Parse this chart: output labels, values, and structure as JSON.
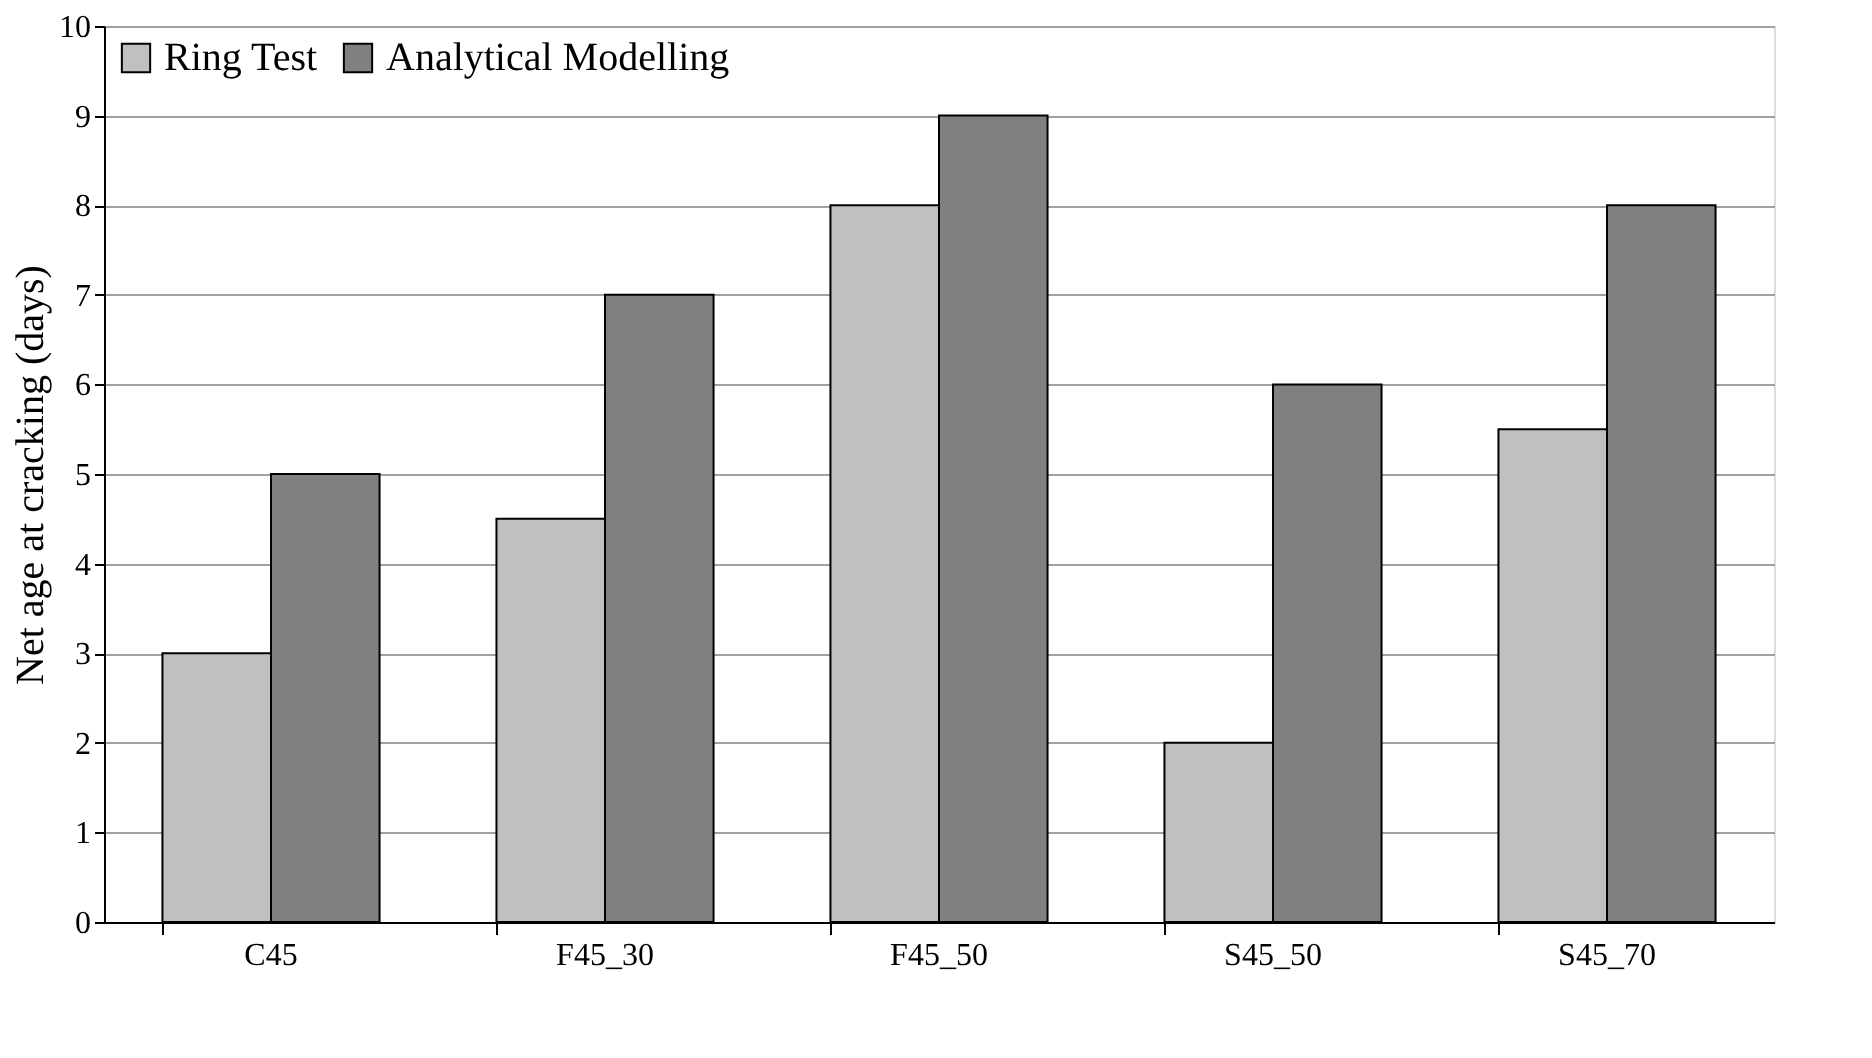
{
  "chart_data": {
    "type": "bar",
    "ylabel": "Net age at cracking (days)",
    "categories": [
      "C45",
      "F45_30",
      "F45_50",
      "S45_50",
      "S45_70"
    ],
    "series": [
      {
        "name": "Ring Test",
        "color": "#c0c0c0",
        "values": [
          3,
          4.5,
          8,
          2,
          5.5
        ]
      },
      {
        "name": "Analytical Modelling",
        "color": "#808080",
        "values": [
          5,
          7,
          9,
          6,
          8
        ]
      }
    ],
    "ylim": [
      0,
      10
    ],
    "yticks": [
      0,
      1,
      2,
      3,
      4,
      5,
      6,
      7,
      8,
      9,
      10
    ],
    "grid": "y",
    "legend": "top left"
  }
}
